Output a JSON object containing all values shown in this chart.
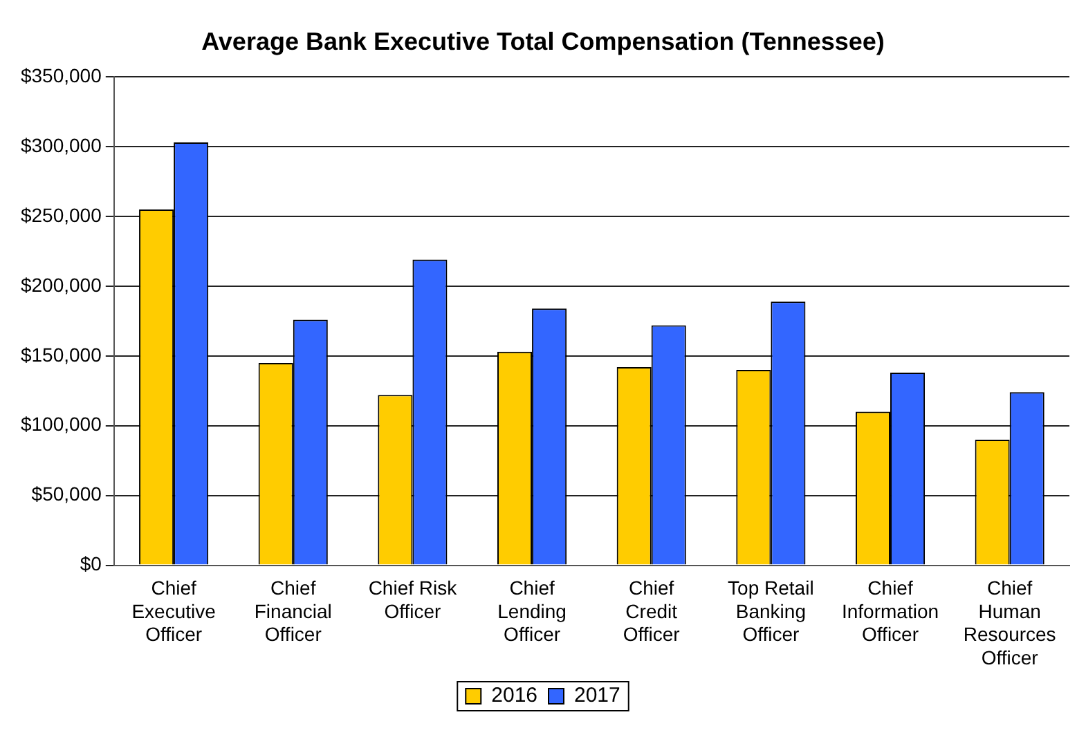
{
  "chart_data": {
    "type": "bar",
    "title": "Average Bank Executive Total Compensation (Tennessee)",
    "categories": [
      "Chief Executive Officer",
      "Chief Financial Officer",
      "Chief Risk Officer",
      "Chief Lending Officer",
      "Chief Credit Officer",
      "Top Retail Banking Officer",
      "Chief Information Officer",
      "Chief Human Resources Officer"
    ],
    "series": [
      {
        "name": "2016",
        "color": "#ffcc00",
        "values": [
          255000,
          145000,
          122000,
          153000,
          142000,
          140000,
          110000,
          90000
        ]
      },
      {
        "name": "2017",
        "color": "#3366ff",
        "values": [
          303000,
          176000,
          219000,
          184000,
          172000,
          189000,
          138000,
          124000
        ]
      }
    ],
    "ylim": [
      0,
      350000
    ],
    "yticks": [
      {
        "value": 0,
        "label": "$0"
      },
      {
        "value": 50000,
        "label": "$50,000"
      },
      {
        "value": 100000,
        "label": "$100,000"
      },
      {
        "value": 150000,
        "label": "$150,000"
      },
      {
        "value": 200000,
        "label": "$200,000"
      },
      {
        "value": 250000,
        "label": "$250,000"
      },
      {
        "value": 300000,
        "label": "$300,000"
      },
      {
        "value": 350000,
        "label": "$350,000"
      }
    ],
    "grid": "y",
    "legend": "bottom"
  }
}
